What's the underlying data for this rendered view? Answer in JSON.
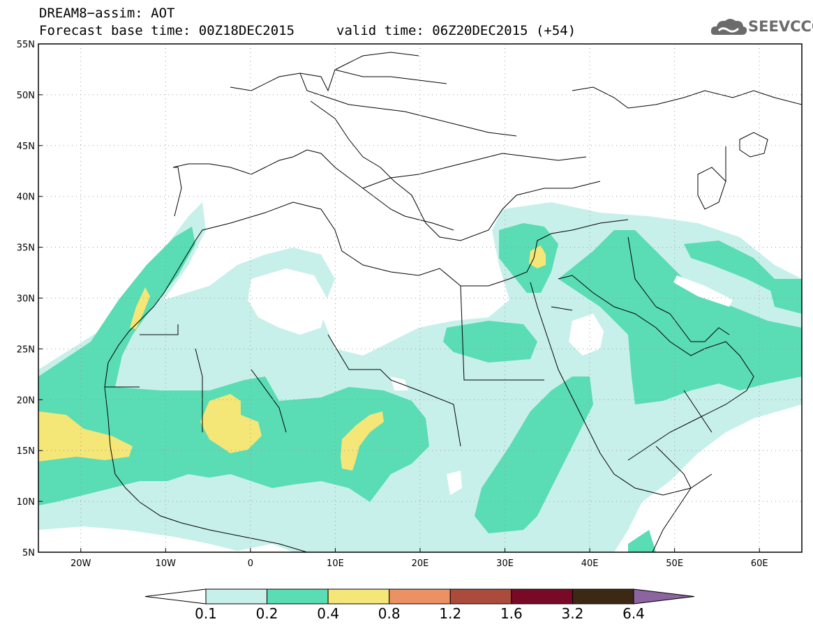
{
  "header": {
    "title_line1": "DREAM8−assim: AOT",
    "title_line2": "Forecast base time: 00Z18DEC2015",
    "valid_time": "valid time: 06Z20DEC2015 (+54)"
  },
  "logo": {
    "text": "SEEVCCC",
    "icon": "cloud-icon"
  },
  "map": {
    "lon_range": [
      -25,
      65
    ],
    "lat_range": [
      5,
      55
    ],
    "lat_ticks": [
      "55N",
      "50N",
      "45N",
      "40N",
      "35N",
      "30N",
      "25N",
      "20N",
      "15N",
      "10N",
      "5N"
    ],
    "lon_ticks": [
      "20W",
      "10W",
      "0",
      "10E",
      "20E",
      "30E",
      "40E",
      "50E",
      "60E"
    ],
    "grid": true
  },
  "colorbar": {
    "levels": [
      "0.1",
      "0.2",
      "0.4",
      "0.8",
      "1.2",
      "1.6",
      "3.2",
      "6.4"
    ],
    "colors": [
      "#ffffff",
      "#c8f0ea",
      "#5adcb4",
      "#f5e678",
      "#eb9164",
      "#aa4b3c",
      "#780a28",
      "#3c2814",
      "#8c64a0"
    ]
  }
}
